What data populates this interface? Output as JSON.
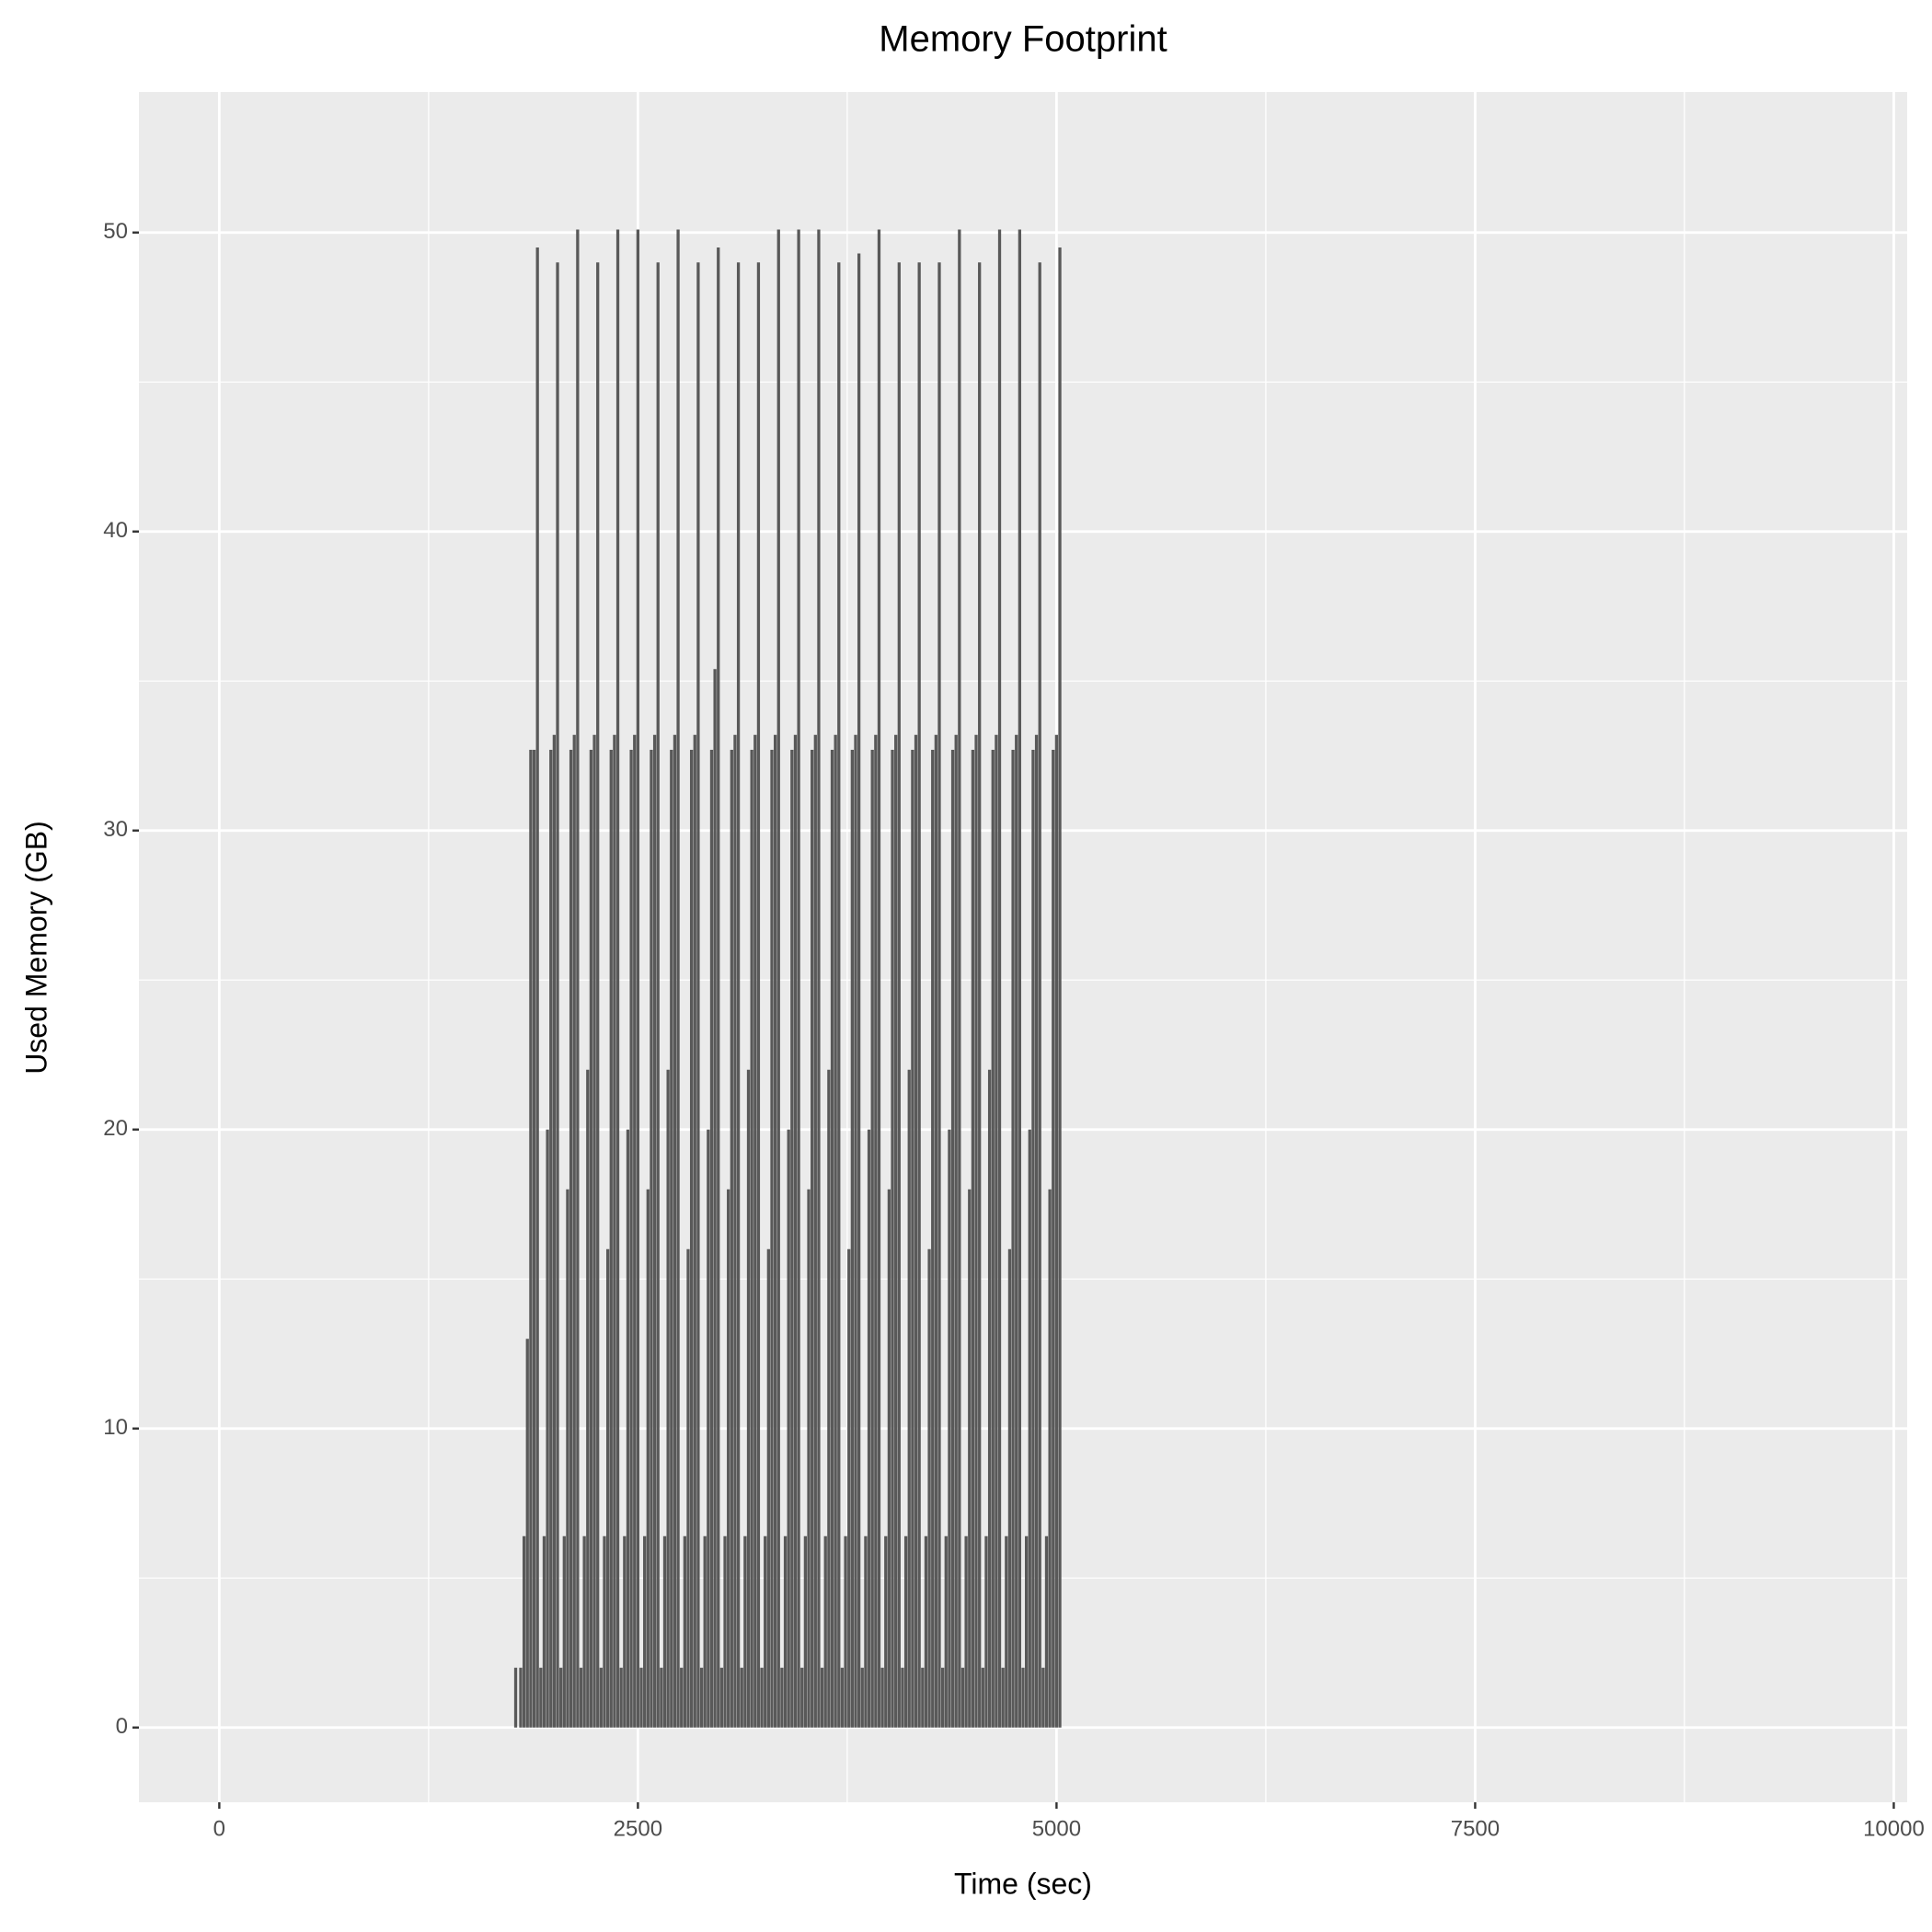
{
  "chart_data": {
    "type": "bar",
    "title": "Memory Footprint",
    "x_label": "Time (sec)",
    "y_label": "Used Memory (GB)",
    "color": "#595959",
    "grid": true,
    "xlim": [
      -480,
      10080
    ],
    "xticks": [
      0,
      2500,
      5000,
      7500,
      10000
    ],
    "ylim": [
      -2.5,
      54.7
    ],
    "yticks": [
      0,
      10,
      20,
      30,
      40,
      50
    ],
    "x": [
      1770,
      1800,
      1820,
      1840,
      1860,
      1880,
      1900,
      1920,
      1940,
      1960,
      1980,
      2000,
      2020,
      2040,
      2060,
      2080,
      2100,
      2120,
      2140,
      2160,
      2180,
      2200,
      2220,
      2240,
      2260,
      2280,
      2300,
      2320,
      2340,
      2360,
      2380,
      2400,
      2420,
      2440,
      2460,
      2480,
      2500,
      2520,
      2540,
      2560,
      2580,
      2600,
      2620,
      2640,
      2660,
      2680,
      2700,
      2720,
      2740,
      2760,
      2780,
      2800,
      2820,
      2840,
      2860,
      2880,
      2900,
      2920,
      2940,
      2960,
      2980,
      3000,
      3020,
      3040,
      3060,
      3080,
      3100,
      3120,
      3140,
      3160,
      3180,
      3200,
      3220,
      3240,
      3260,
      3280,
      3300,
      3320,
      3340,
      3360,
      3380,
      3400,
      3420,
      3440,
      3460,
      3480,
      3500,
      3520,
      3540,
      3560,
      3580,
      3600,
      3620,
      3640,
      3660,
      3680,
      3700,
      3720,
      3740,
      3760,
      3780,
      3800,
      3820,
      3840,
      3860,
      3880,
      3900,
      3920,
      3940,
      3960,
      3980,
      4000,
      4020,
      4040,
      4060,
      4080,
      4100,
      4120,
      4140,
      4160,
      4180,
      4200,
      4220,
      4240,
      4260,
      4280,
      4300,
      4320,
      4340,
      4360,
      4380,
      4400,
      4420,
      4440,
      4460,
      4480,
      4500,
      4520,
      4540,
      4560,
      4580,
      4600,
      4620,
      4640,
      4660,
      4680,
      4700,
      4720,
      4740,
      4760,
      4780,
      4800,
      4820,
      4840,
      4860,
      4880,
      4900,
      4920,
      4940,
      4960,
      4980,
      5000,
      5020
    ],
    "values": [
      2.0,
      2.0,
      6.4,
      13.0,
      32.7,
      32.7,
      49.5,
      2.0,
      6.4,
      20.0,
      32.7,
      33.2,
      49.0,
      2.0,
      6.4,
      18.0,
      32.7,
      33.2,
      50.1,
      2.0,
      6.4,
      22.0,
      32.7,
      33.2,
      49.0,
      2.0,
      6.4,
      16.0,
      32.7,
      33.2,
      50.1,
      2.0,
      6.4,
      20.0,
      32.7,
      33.2,
      50.1,
      2.0,
      6.4,
      18.0,
      32.7,
      33.2,
      49.0,
      2.0,
      6.4,
      22.0,
      32.7,
      33.2,
      50.1,
      2.0,
      6.4,
      16.0,
      32.7,
      33.2,
      49.0,
      2.0,
      6.4,
      20.0,
      32.7,
      35.4,
      49.5,
      2.0,
      6.4,
      18.0,
      32.7,
      33.2,
      49.0,
      2.0,
      6.4,
      22.0,
      32.7,
      33.2,
      49.0,
      2.0,
      6.4,
      16.0,
      32.7,
      33.2,
      50.1,
      2.0,
      6.4,
      20.0,
      32.7,
      33.2,
      50.1,
      2.0,
      6.4,
      18.0,
      32.7,
      33.2,
      50.1,
      2.0,
      6.4,
      22.0,
      32.7,
      33.2,
      49.0,
      2.0,
      6.4,
      16.0,
      32.7,
      33.2,
      49.3,
      2.0,
      6.4,
      20.0,
      32.7,
      33.2,
      50.1,
      2.0,
      6.4,
      18.0,
      32.7,
      33.2,
      49.0,
      2.0,
      6.4,
      22.0,
      32.7,
      33.2,
      49.0,
      2.0,
      6.4,
      16.0,
      32.7,
      33.2,
      49.0,
      2.0,
      6.4,
      20.0,
      32.7,
      33.2,
      50.1,
      2.0,
      6.4,
      18.0,
      32.7,
      33.2,
      49.0,
      2.0,
      6.4,
      22.0,
      32.7,
      33.2,
      50.1,
      2.0,
      6.4,
      16.0,
      32.7,
      33.2,
      50.1,
      2.0,
      6.4,
      20.0,
      32.7,
      33.2,
      49.0,
      2.0,
      6.4,
      18.0,
      32.7,
      33.2,
      49.5
    ]
  }
}
